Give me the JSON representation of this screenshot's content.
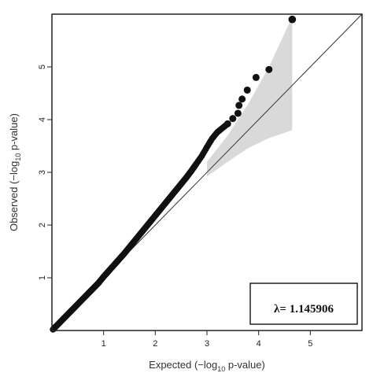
{
  "chart_data": {
    "type": "scatter",
    "title": "",
    "xlabel": {
      "prefix": "Expected (−log",
      "sub": "10",
      "suffix": " p-value)"
    },
    "ylabel": {
      "prefix": "Observed (−log",
      "sub": "10",
      "suffix": " p-value)"
    },
    "xlim": [
      0,
      6
    ],
    "ylim": [
      0,
      6
    ],
    "x_ticks": [
      "1",
      "2",
      "3",
      "4",
      "5"
    ],
    "y_ticks": [
      "1",
      "2",
      "3",
      "4",
      "5"
    ],
    "grid": false,
    "reference_line": "y = x",
    "confidence_band": {
      "x": [
        3.0,
        3.4,
        3.8,
        4.2,
        4.65
      ],
      "lower": [
        2.92,
        3.2,
        3.46,
        3.65,
        3.8
      ],
      "upper": [
        3.2,
        3.7,
        4.3,
        5.0,
        5.95
      ]
    },
    "series": [
      {
        "marker": "filled-circle",
        "points": [
          [
            0.02,
            0.02
          ],
          [
            0.1,
            0.1
          ],
          [
            0.2,
            0.2
          ],
          [
            0.3,
            0.3
          ],
          [
            0.4,
            0.4
          ],
          [
            0.5,
            0.5
          ],
          [
            0.6,
            0.6
          ],
          [
            0.7,
            0.7
          ],
          [
            0.8,
            0.8
          ],
          [
            0.9,
            0.9
          ],
          [
            1.0,
            1.02
          ],
          [
            1.1,
            1.13
          ],
          [
            1.2,
            1.24
          ],
          [
            1.3,
            1.35
          ],
          [
            1.4,
            1.46
          ],
          [
            1.5,
            1.58
          ],
          [
            1.6,
            1.7
          ],
          [
            1.7,
            1.82
          ],
          [
            1.8,
            1.94
          ],
          [
            1.9,
            2.06
          ],
          [
            2.0,
            2.18
          ],
          [
            2.1,
            2.3
          ],
          [
            2.2,
            2.42
          ],
          [
            2.3,
            2.54
          ],
          [
            2.4,
            2.66
          ],
          [
            2.5,
            2.78
          ],
          [
            2.6,
            2.9
          ],
          [
            2.7,
            3.03
          ],
          [
            2.8,
            3.17
          ],
          [
            2.9,
            3.31
          ],
          [
            3.0,
            3.48
          ],
          [
            3.1,
            3.64
          ],
          [
            3.2,
            3.76
          ],
          [
            3.3,
            3.84
          ],
          [
            3.4,
            3.92
          ],
          [
            3.5,
            4.02
          ],
          [
            3.6,
            4.12
          ],
          [
            3.62,
            4.27
          ],
          [
            3.68,
            4.39
          ],
          [
            3.78,
            4.56
          ],
          [
            3.95,
            4.8
          ],
          [
            4.2,
            4.95
          ],
          [
            4.65,
            5.9
          ]
        ]
      }
    ],
    "annotation": "λ= 1.145906",
    "legend": "none"
  }
}
